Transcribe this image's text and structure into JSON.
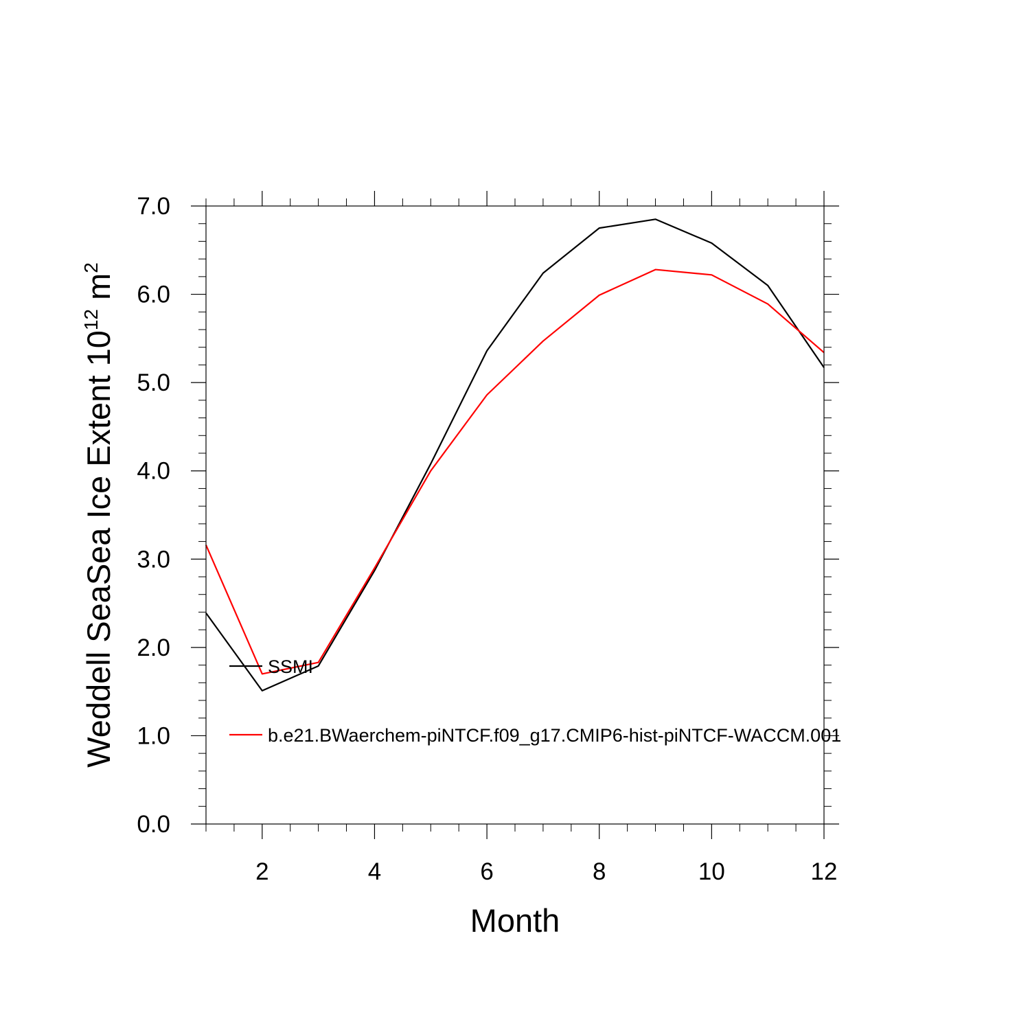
{
  "chart_data": {
    "type": "line",
    "xlabel": "Month",
    "ylabel": {
      "prefix": "Weddell SeaSea Ice Extent 10",
      "exponent1": "12",
      "middle": " m",
      "exponent2": "2"
    },
    "xlim": [
      1,
      12
    ],
    "ylim": [
      0,
      7
    ],
    "x_ticks": [
      2,
      4,
      6,
      8,
      10,
      12
    ],
    "x_tick_labels": [
      "2",
      "4",
      "6",
      "8",
      "10",
      "12"
    ],
    "y_ticks": [
      0,
      1,
      2,
      3,
      4,
      5,
      6,
      7
    ],
    "y_tick_labels": [
      "0.0",
      "1.0",
      "2.0",
      "3.0",
      "4.0",
      "5.0",
      "6.0",
      "7.0"
    ],
    "x": [
      1,
      2,
      3,
      4,
      5,
      6,
      7,
      8,
      9,
      10,
      11,
      12
    ],
    "series": [
      {
        "name": "SSMI",
        "color": "#000000",
        "values": [
          2.39,
          1.51,
          1.79,
          2.87,
          4.08,
          5.36,
          6.24,
          6.75,
          6.85,
          6.58,
          6.1,
          5.17
        ]
      },
      {
        "name": "b.e21.BWaerchem-piNTCF.f09_g17.CMIP6-hist-piNTCF-WACCM.001",
        "color": "#ff0000",
        "values": [
          3.16,
          1.7,
          1.83,
          2.9,
          4.0,
          4.86,
          5.47,
          5.99,
          6.28,
          6.22,
          5.89,
          5.34
        ]
      }
    ],
    "legend": "inside, lower-left",
    "grid": false
  }
}
